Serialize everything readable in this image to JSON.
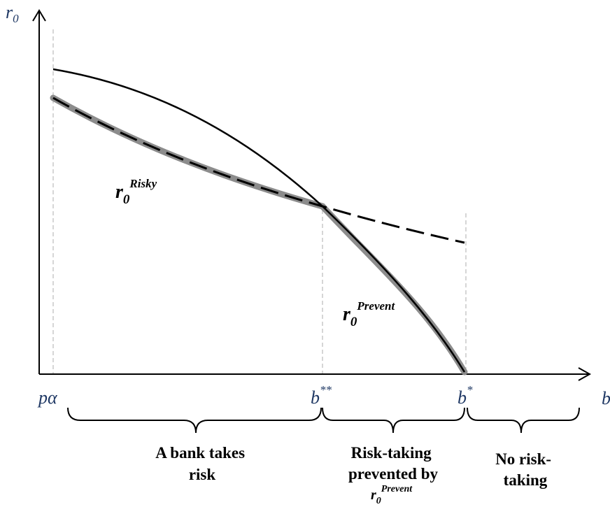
{
  "axes": {
    "y_label": {
      "base": "r",
      "sub": "0"
    },
    "x_label": "b"
  },
  "ticks": [
    {
      "id": "p-alpha",
      "base": "pα",
      "sup": ""
    },
    {
      "id": "b-double-star",
      "base": "b",
      "sup": "**"
    },
    {
      "id": "b-star",
      "base": "b",
      "sup": "*"
    }
  ],
  "curve_labels": {
    "risky": {
      "base": "r",
      "sub": "0",
      "sup": "Risky"
    },
    "prevent": {
      "base": "r",
      "sub": "0",
      "sup": "Prevent"
    }
  },
  "regions": [
    {
      "id": "takes-risk",
      "lines": [
        "A bank takes",
        "risk"
      ]
    },
    {
      "id": "prevented",
      "lines": [
        "Risk-taking",
        "prevented by"
      ],
      "suffix": {
        "base": "r",
        "sub": "0",
        "sup": "Prevent"
      }
    },
    {
      "id": "no-risk",
      "lines": [
        "No risk-",
        "taking"
      ]
    }
  ],
  "colors": {
    "curve": "#000000",
    "highlight": "#8c8c8c",
    "guide": "#c0c0c0",
    "tick_text": "#1f3864"
  }
}
